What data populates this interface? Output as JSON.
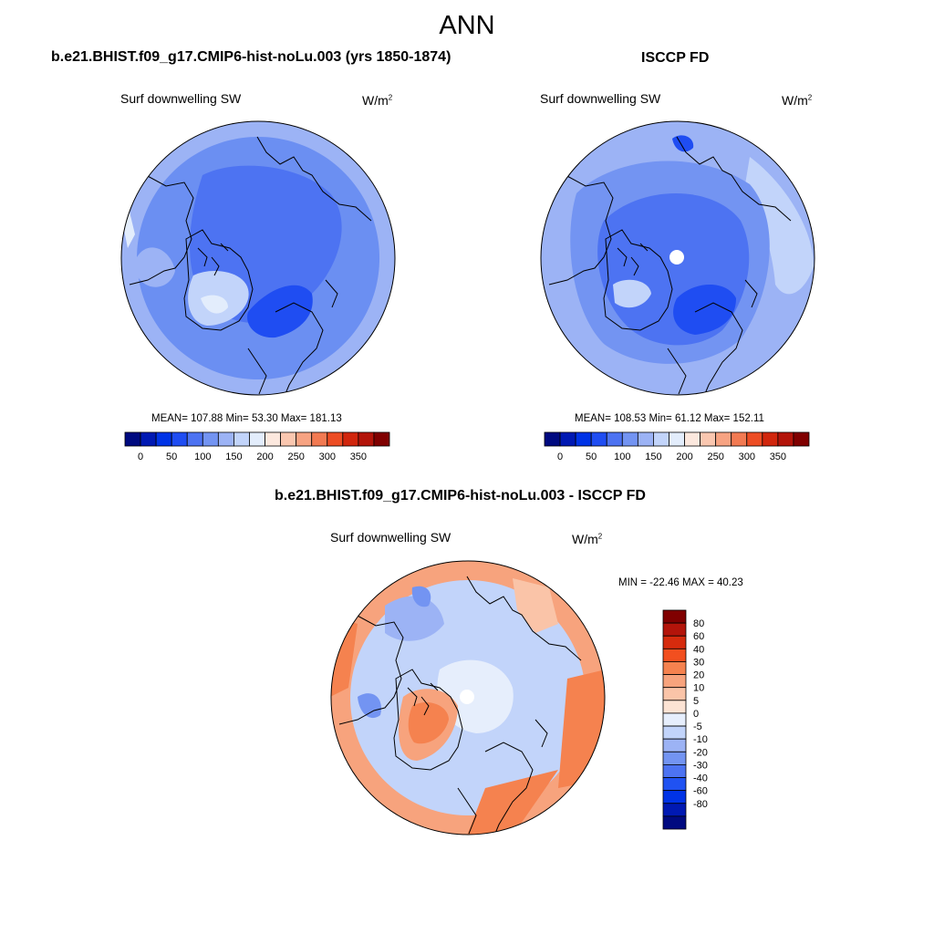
{
  "title": "ANN",
  "panels": {
    "model": {
      "title": "b.e21.BHIST.f09_g17.CMIP6-hist-noLu.003 (yrs 1850-1874)",
      "variable": "Surf downwelling SW",
      "units": "W/m",
      "units_exp": "2",
      "stats": "MEAN= 107.88  Min=  53.30  Max= 181.13"
    },
    "obs": {
      "title": "ISCCP FD",
      "variable": "Surf downwelling SW",
      "units": "W/m",
      "units_exp": "2",
      "stats": "MEAN= 108.53  Min=  61.12  Max= 152.11"
    },
    "diff": {
      "title": "b.e21.BHIST.f09_g17.CMIP6-hist-noLu.003 - ISCCP FD",
      "variable": "Surf downwelling SW",
      "units": "W/m",
      "units_exp": "2",
      "stats": "MIN = -22.46 MAX =  40.23"
    }
  },
  "colorbar_abs": {
    "colors": [
      "#000a80",
      "#0019b3",
      "#0033e6",
      "#1f4df2",
      "#4d73f2",
      "#7394f2",
      "#9cb3f5",
      "#c2d4fa",
      "#e3edfc",
      "#fce8de",
      "#fac7b0",
      "#f7a382",
      "#f27a52",
      "#ed4d24",
      "#d1260d",
      "#b3140a",
      "#800000"
    ],
    "tick_labels": [
      "0",
      "50",
      "100",
      "150",
      "200",
      "250",
      "300",
      "350"
    ]
  },
  "colorbar_diff": {
    "colors": [
      "#800000",
      "#b3140a",
      "#d62b0d",
      "#f24f1f",
      "#f5824f",
      "#f7a37d",
      "#fac4a8",
      "#fce3d4",
      "#e6eefc",
      "#c2d4fa",
      "#9cb3f5",
      "#7394f2",
      "#4d73f2",
      "#2052f2",
      "#0033e6",
      "#0019b3",
      "#000a80"
    ],
    "tick_labels": [
      "80",
      "60",
      "40",
      "30",
      "20",
      "10",
      "5",
      "0",
      "-5",
      "-10",
      "-20",
      "-30",
      "-40",
      "-60",
      "-80"
    ]
  },
  "maps": {
    "model": {
      "background": "#6b8ff2",
      "fills": [
        "#e3edfc",
        "#c2d4fa",
        "#9cb3f5",
        "#4d73f2",
        "#1f4df2"
      ]
    },
    "obs": {
      "background": "#9cb3f5",
      "fills": [
        "#c2d4fa",
        "#7394f2",
        "#4d73f2",
        "#1f4df2"
      ]
    },
    "diff": {
      "background": "#c2d4fa",
      "fills": [
        "#e6eefc",
        "#9cb3f5",
        "#7394f2",
        "#fac4a8",
        "#f7a37d",
        "#f5824f"
      ]
    }
  }
}
